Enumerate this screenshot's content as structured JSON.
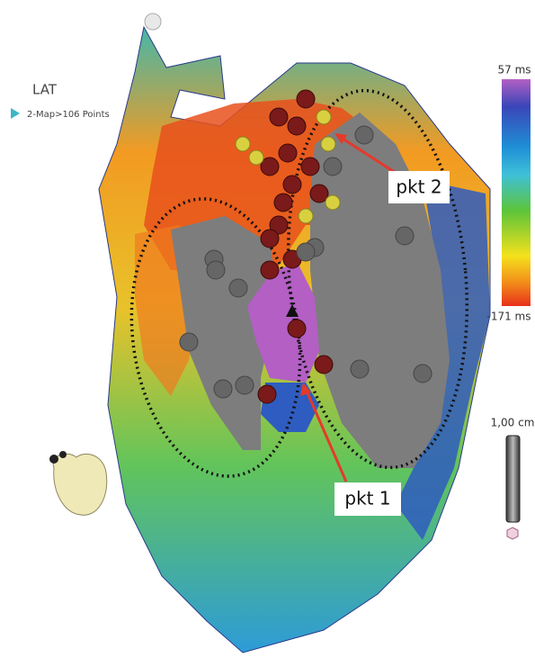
{
  "header": {
    "title": "LAT",
    "subtitle": "2-Map>106 Points"
  },
  "color_scale": {
    "max_label": "57 ms",
    "min_label": "-171 ms"
  },
  "scale_bar": {
    "label": "1,00 cm"
  },
  "annotations": [
    "pkt 2",
    "pkt 1"
  ]
}
